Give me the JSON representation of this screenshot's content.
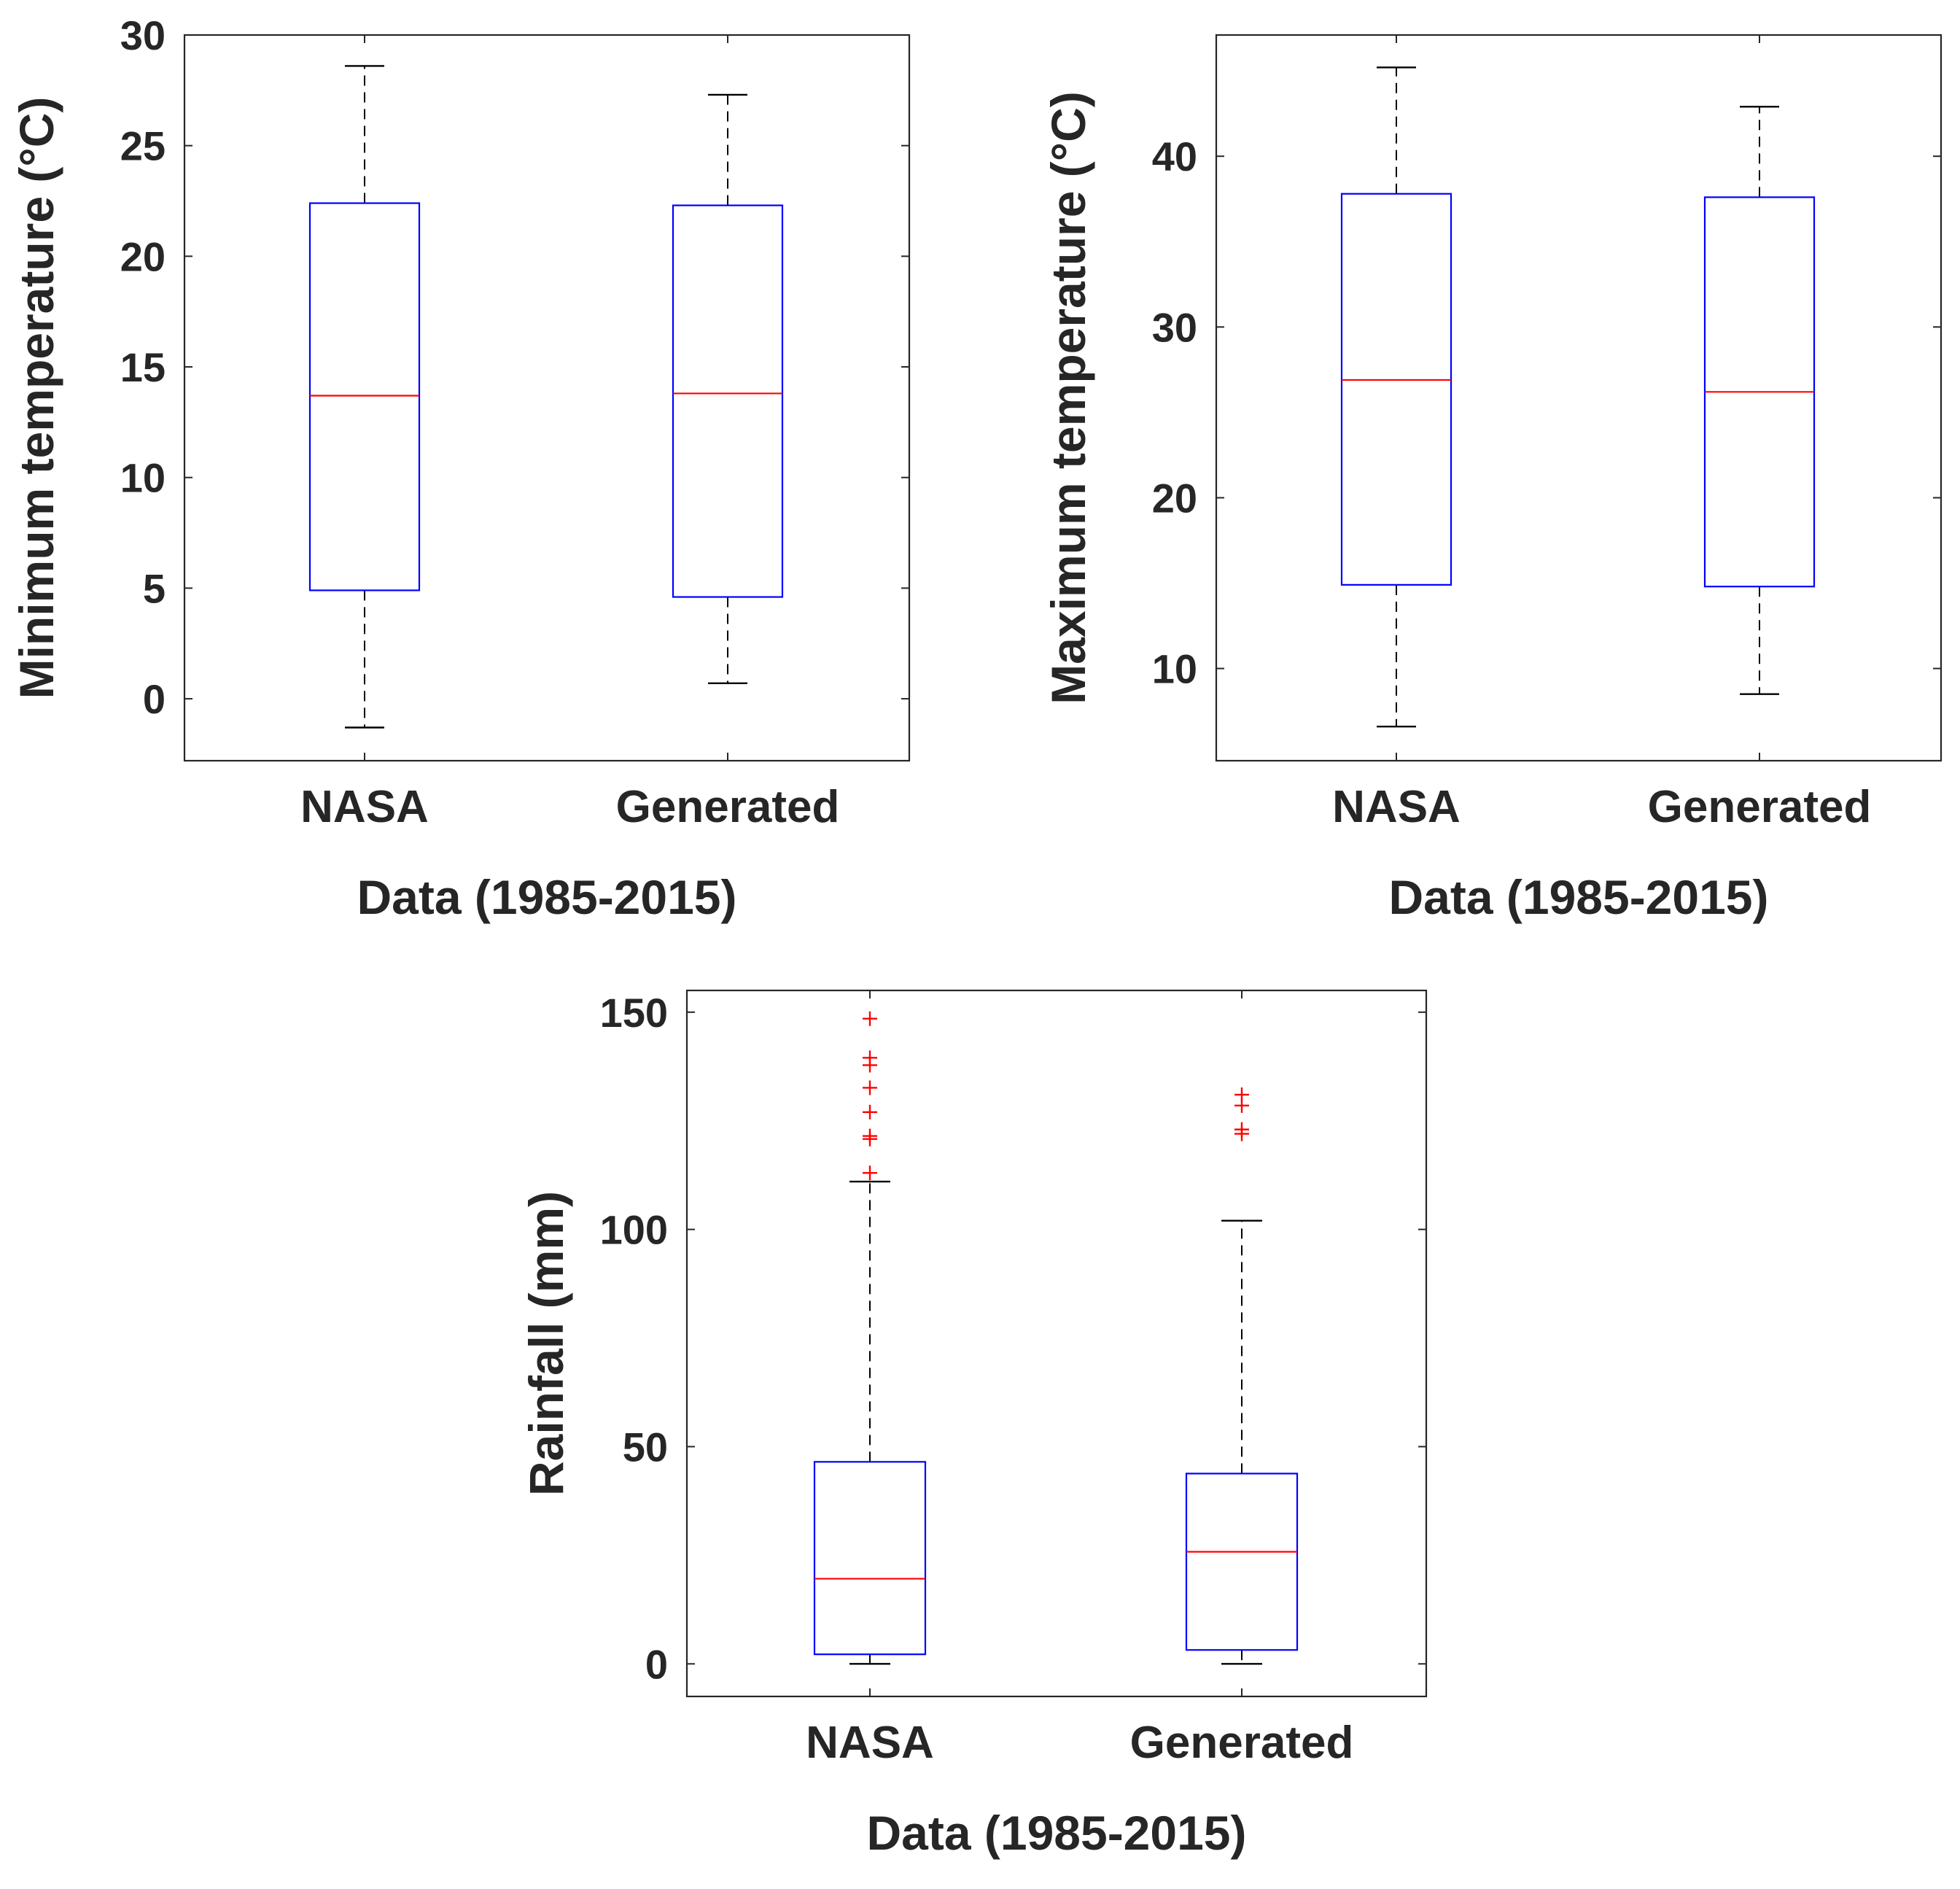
{
  "chart_data": [
    {
      "type": "boxplot",
      "id": "min-temp",
      "title": "",
      "xlabel": "Data (1985-2015)",
      "ylabel": "Minimum temperature (°C)",
      "categories": [
        "NASA",
        "Generated"
      ],
      "ylim": [
        -2.8,
        30
      ],
      "yticks": [
        0,
        5,
        10,
        15,
        20,
        25,
        30
      ],
      "ytick_labels": [
        "0",
        "5",
        "10",
        "15",
        "20",
        "25",
        "30"
      ],
      "boxes": [
        {
          "name": "NASA",
          "whisker_low": -1.3,
          "q1": 4.9,
          "median": 13.7,
          "q3": 22.4,
          "whisker_high": 28.6,
          "outliers": []
        },
        {
          "name": "Generated",
          "whisker_low": 0.7,
          "q1": 4.6,
          "median": 13.8,
          "q3": 22.3,
          "whisker_high": 27.3,
          "outliers": []
        }
      ]
    },
    {
      "type": "boxplot",
      "id": "max-temp",
      "title": "",
      "xlabel": "Data (1985-2015)",
      "ylabel": "Maximum temperature (°C)",
      "categories": [
        "NASA",
        "Generated"
      ],
      "ylim": [
        4.6,
        47.1
      ],
      "yticks": [
        10,
        20,
        30,
        40
      ],
      "ytick_labels": [
        "10",
        "20",
        "30",
        "40"
      ],
      "boxes": [
        {
          "name": "NASA",
          "whisker_low": 6.6,
          "q1": 14.9,
          "median": 26.9,
          "q3": 37.8,
          "whisker_high": 45.2,
          "outliers": []
        },
        {
          "name": "Generated",
          "whisker_low": 8.5,
          "q1": 14.8,
          "median": 26.2,
          "q3": 37.6,
          "whisker_high": 42.9,
          "outliers": []
        }
      ]
    },
    {
      "type": "boxplot",
      "id": "rainfall",
      "title": "",
      "xlabel": "Data (1985-2015)",
      "ylabel": "Rainfall (mm)",
      "categories": [
        "NASA",
        "Generated"
      ],
      "ylim": [
        -7.5,
        155
      ],
      "yticks": [
        0,
        50,
        100,
        150
      ],
      "ytick_labels": [
        "0",
        "50",
        "100",
        "150"
      ],
      "boxes": [
        {
          "name": "NASA",
          "whisker_low": 0,
          "q1": 2.2,
          "median": 19.6,
          "q3": 46.5,
          "whisker_high": 111,
          "outliers": [
            113,
            120.8,
            121.5,
            127,
            132.6,
            137.8,
            139.5,
            148.5
          ]
        },
        {
          "name": "Generated",
          "whisker_low": 0,
          "q1": 3.2,
          "median": 25.8,
          "q3": 43.8,
          "whisker_high": 102,
          "outliers": [
            122,
            123,
            128.5,
            131
          ]
        }
      ]
    }
  ],
  "colors": {
    "box": "#0000ff",
    "median": "#ff0000",
    "outlier": "#ff0000",
    "whisker": "#000000",
    "axes": "#262626",
    "text": "#262626"
  }
}
